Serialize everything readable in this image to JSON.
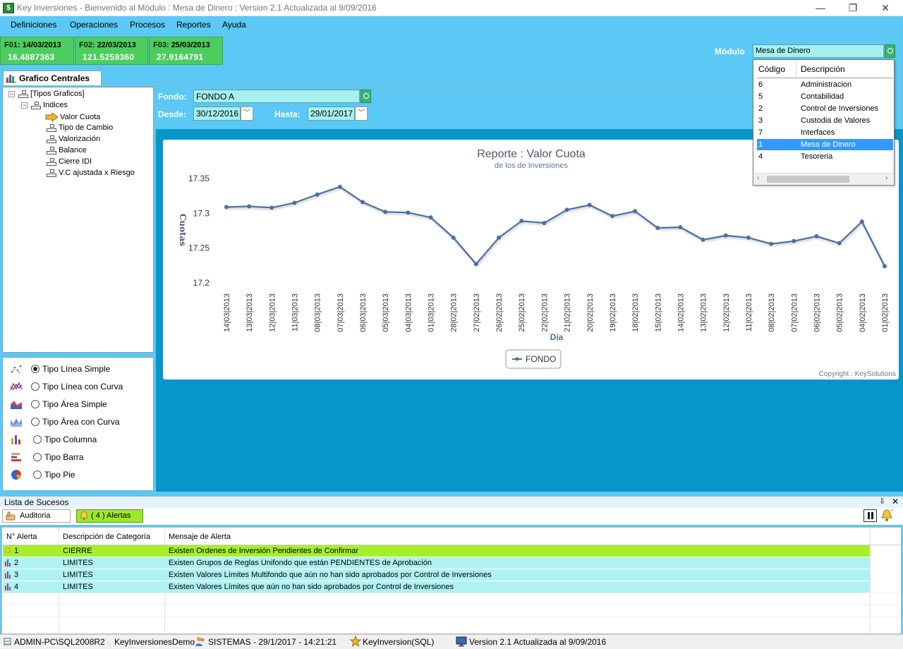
{
  "window": {
    "title": "Key Inversiones - Bienvenido al Módulo : Mesa de Dinero : Version 2.1 Actualizada al 9/09/2016",
    "minimize": "—",
    "restore": "❐",
    "close": "✕"
  },
  "menu": [
    "Definiciones",
    "Operaciones",
    "Procesos",
    "Reportes",
    "Ayuda"
  ],
  "funds": [
    {
      "code": "F01:",
      "date": "14/03/2013",
      "value": "16.4887363"
    },
    {
      "code": "F02:",
      "date": "22/03/2013",
      "value": "121.5259360"
    },
    {
      "code": "F03:",
      "date": "25/03/2013",
      "value": "27.9164791"
    }
  ],
  "modulo": {
    "label": "Módulo",
    "value": "Mesa de Dinero"
  },
  "tab": {
    "label": "Grafico Centrales"
  },
  "tree": {
    "root": "[Tipos Graficos]",
    "group": "Indices",
    "items": [
      "Valor Cuota",
      "Tipo de Cambio",
      "Valorización",
      "Balance",
      "Cierre IDI",
      "V.C ajustada x Riesgo"
    ]
  },
  "chart_types": [
    {
      "label": "Tipo Línea Simple",
      "selected": true
    },
    {
      "label": "Tipo Línea con Curva",
      "selected": false
    },
    {
      "label": "Tipo Área Simple",
      "selected": false
    },
    {
      "label": "Tipo Área  con Curva",
      "selected": false
    },
    {
      "label": "Tipo Columna",
      "selected": false
    },
    {
      "label": "Tipo Barra",
      "selected": false
    },
    {
      "label": "Tipo Pie",
      "selected": false
    }
  ],
  "params": {
    "fondo_label": "Fondo:",
    "fondo_value": "FONDO A",
    "desde_label": "Desde:",
    "desde_value": "30/12/2016",
    "hasta_label": "Hasta:",
    "hasta_value": "29/01/2017"
  },
  "dropdown": {
    "col_code": "Código",
    "col_desc": "Descripción",
    "rows": [
      {
        "code": "6",
        "desc": "Administracion",
        "selected": false
      },
      {
        "code": "5",
        "desc": "Contabilidad",
        "selected": false
      },
      {
        "code": "2",
        "desc": "Control de Inversiones",
        "selected": false
      },
      {
        "code": "3",
        "desc": "Custodia de Valores",
        "selected": false
      },
      {
        "code": "7",
        "desc": "Interfaces",
        "selected": false
      },
      {
        "code": "1",
        "desc": "Mesa de Dinero",
        "selected": true
      },
      {
        "code": "4",
        "desc": "Tesoreria",
        "selected": false
      }
    ]
  },
  "chart_data": {
    "type": "line",
    "title": "Reporte : Valor Cuota",
    "subtitle": "de los de Inversiones",
    "xlabel": "Día",
    "ylabel": "Cuotas",
    "ylim": [
      17.2,
      17.35
    ],
    "yticks": [
      "17.35",
      "17.3",
      "17.25",
      "17.2"
    ],
    "grid": false,
    "legend_position": "bottom",
    "categories": [
      "14|03|2013",
      "13|03|2013",
      "12|03|2013",
      "11|03|2013",
      "08|03|2013",
      "07|03|2013",
      "06|03|2013",
      "05|03|2013",
      "04|03|2013",
      "01|03|2013",
      "28|02|2013",
      "27|02|2013",
      "26|02|2013",
      "25|02|2013",
      "22|02|2013",
      "21|02|2013",
      "20|02|2013",
      "19|02|2013",
      "18|02|2013",
      "15|02|2013",
      "14|02|2013",
      "13|02|2013",
      "12|02|2013",
      "11|02|2013",
      "08|02|2013",
      "07|02|2013",
      "06|02|2013",
      "05|02|2013",
      "04|02|2013",
      "01|02|2013"
    ],
    "series": [
      {
        "name": "FONDO",
        "color": "#4a6fa5",
        "values": [
          17.309,
          17.31,
          17.308,
          17.315,
          17.327,
          17.338,
          17.316,
          17.302,
          17.301,
          17.294,
          17.265,
          17.227,
          17.265,
          17.289,
          17.286,
          17.305,
          17.312,
          17.296,
          17.303,
          17.279,
          17.28,
          17.262,
          17.268,
          17.265,
          17.256,
          17.26,
          17.267,
          17.257,
          17.288,
          17.224
        ]
      }
    ],
    "copyright": "Copyright : KeySolutions"
  },
  "sucesos": {
    "title": "Lista de Sucesos",
    "pin": "⇩",
    "close": "✕",
    "tab_auditoria": "Auditoria",
    "tab_alertas": "( 4 ) Alertas",
    "columns": [
      "N° Alerta",
      "Descripción de Categoría",
      "Mensaje de Alerta"
    ],
    "rows": [
      {
        "num": "1",
        "cat": "CIERRE",
        "msg": "Existen Ordenes de Inversión Pendientes de Confirmar",
        "color": "#a6f02a"
      },
      {
        "num": "2",
        "cat": "LIMITES",
        "msg": "Existen Grupos de Reglas Unifondo que están PENDIENTES de Aprobación",
        "color": "#aef2f2"
      },
      {
        "num": "3",
        "cat": "LIMITES",
        "msg": "Existen Valores Límites Multifondo que aún no han sido aprobados por Control de Inversiones",
        "color": "#aef2f2"
      },
      {
        "num": "4",
        "cat": "LIMITES",
        "msg": "Existen Valores Límites que aún no han sido aprobados por Control de Inversiones",
        "color": "#aef2f2"
      }
    ]
  },
  "status": {
    "server": "ADMIN-PC\\SQL2008R2",
    "database": "KeyInversionesDemo",
    "user": "SISTEMAS - 29/1/2017 - 14:21:21",
    "app": "KeyInversion(SQL)",
    "version": "Version 2.1 Actualizada al 9/09/2016"
  }
}
